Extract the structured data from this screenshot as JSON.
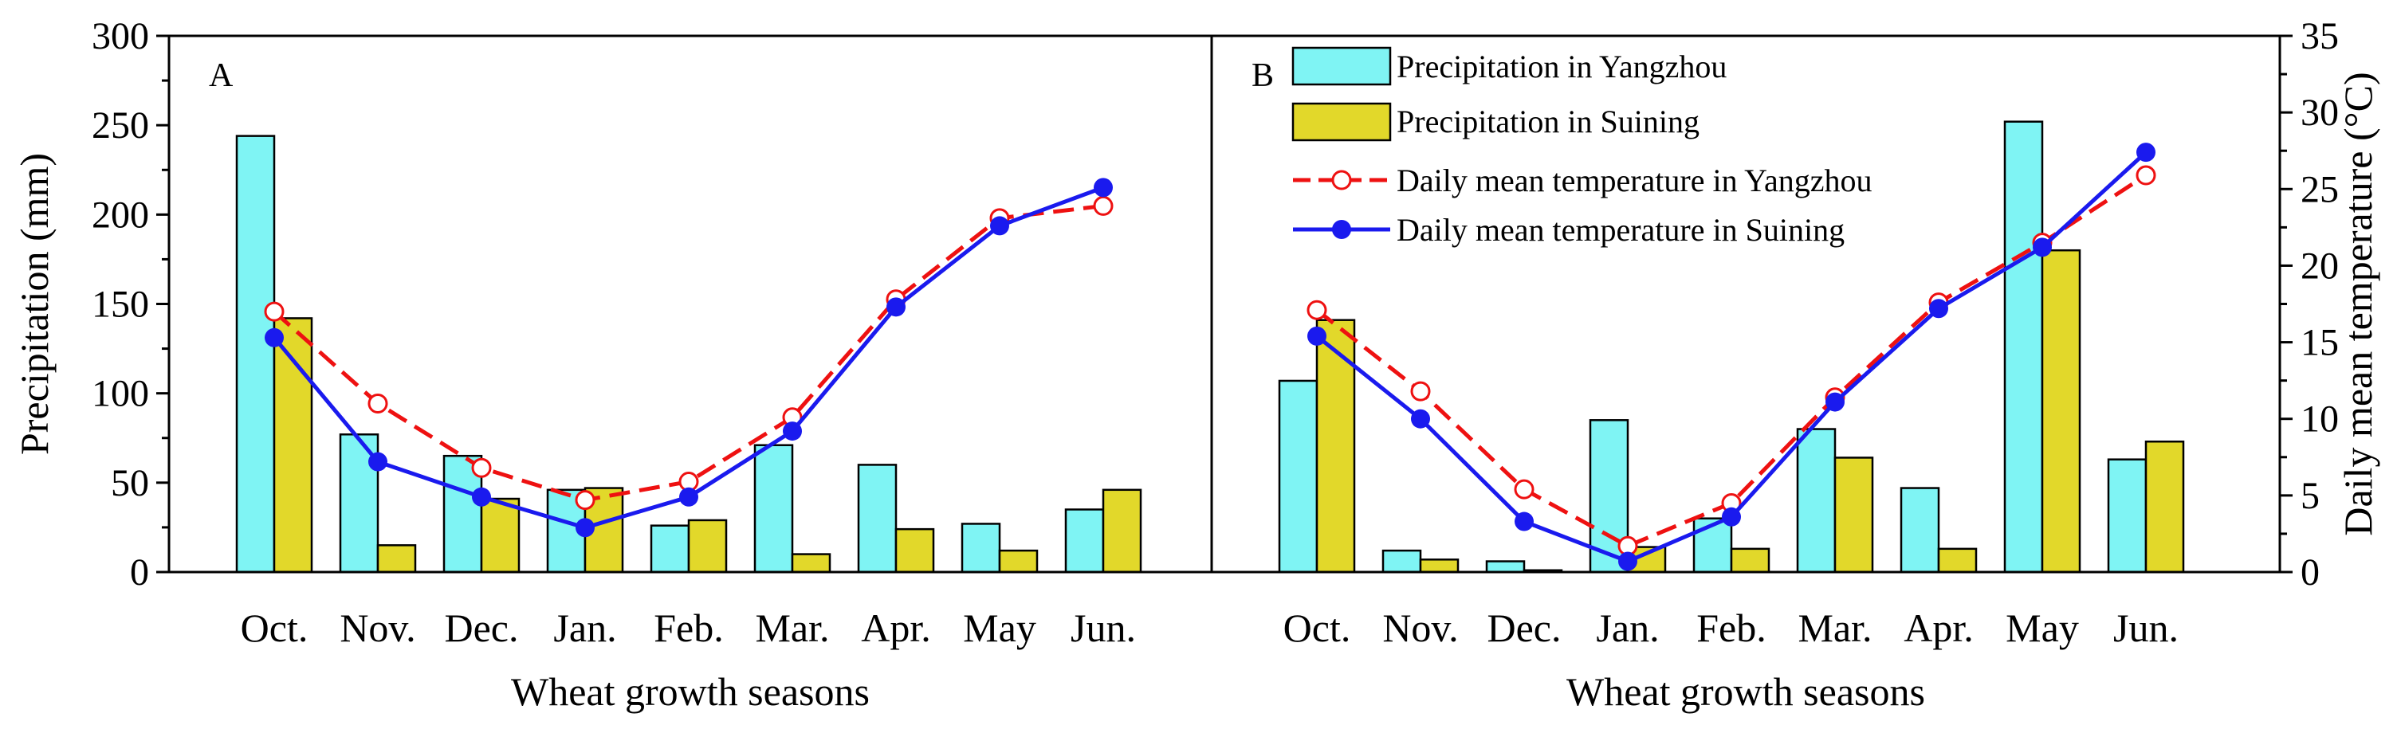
{
  "chart_data": {
    "type": "bar+line",
    "x_title": "Wheat growth seasons",
    "y_left_title": "Precipitation (mm)",
    "y_right_title": "Daily mean temperature (°C)",
    "y_left_range": [
      0,
      300
    ],
    "y_right_range": [
      0,
      35
    ],
    "y_left_ticks": [
      "0",
      "50",
      "100",
      "150",
      "200",
      "250",
      "300"
    ],
    "y_right_ticks": [
      "0",
      "5",
      "10",
      "15",
      "20",
      "25",
      "30",
      "35"
    ],
    "categories": [
      "Oct.",
      "Nov.",
      "Dec.",
      "Jan.",
      "Feb.",
      "Mar.",
      "Apr.",
      "May",
      "Jun."
    ],
    "legend": [
      {
        "key": "yz_precip",
        "label": "Precipitation in Yangzhou"
      },
      {
        "key": "sn_precip",
        "label": "Precipitation in Suining"
      },
      {
        "key": "yz_temp",
        "label": "Daily mean temperature in Yangzhou"
      },
      {
        "key": "sn_temp",
        "label": "Daily mean temperature in Suining"
      }
    ],
    "colors": {
      "yz_bar": "#7ff4f4",
      "sn_bar": "#e2d82a",
      "yz_line": "#ee1111",
      "sn_line": "#1a1aee"
    },
    "panels": [
      {
        "label": "A",
        "yz_precip": [
          244,
          77,
          65,
          46,
          26,
          71,
          60,
          27,
          35
        ],
        "sn_precip": [
          142,
          15,
          41,
          47,
          29,
          10,
          24,
          12,
          46
        ],
        "yz_temp": [
          17.0,
          11.0,
          6.8,
          4.7,
          5.9,
          10.1,
          17.8,
          23.1,
          23.9
        ],
        "sn_temp": [
          15.3,
          7.2,
          4.9,
          2.9,
          4.9,
          9.2,
          17.3,
          22.6,
          25.1
        ]
      },
      {
        "label": "B",
        "yz_precip": [
          107,
          12,
          6,
          85,
          30,
          80,
          47,
          252,
          63
        ],
        "sn_precip": [
          141,
          7,
          1,
          14,
          13,
          64,
          13,
          180,
          73
        ],
        "yz_temp": [
          17.1,
          11.8,
          5.4,
          1.7,
          4.5,
          11.4,
          17.6,
          21.5,
          25.9
        ],
        "sn_temp": [
          15.4,
          10.0,
          3.3,
          0.7,
          3.6,
          11.1,
          17.2,
          21.2,
          27.4
        ]
      }
    ]
  }
}
